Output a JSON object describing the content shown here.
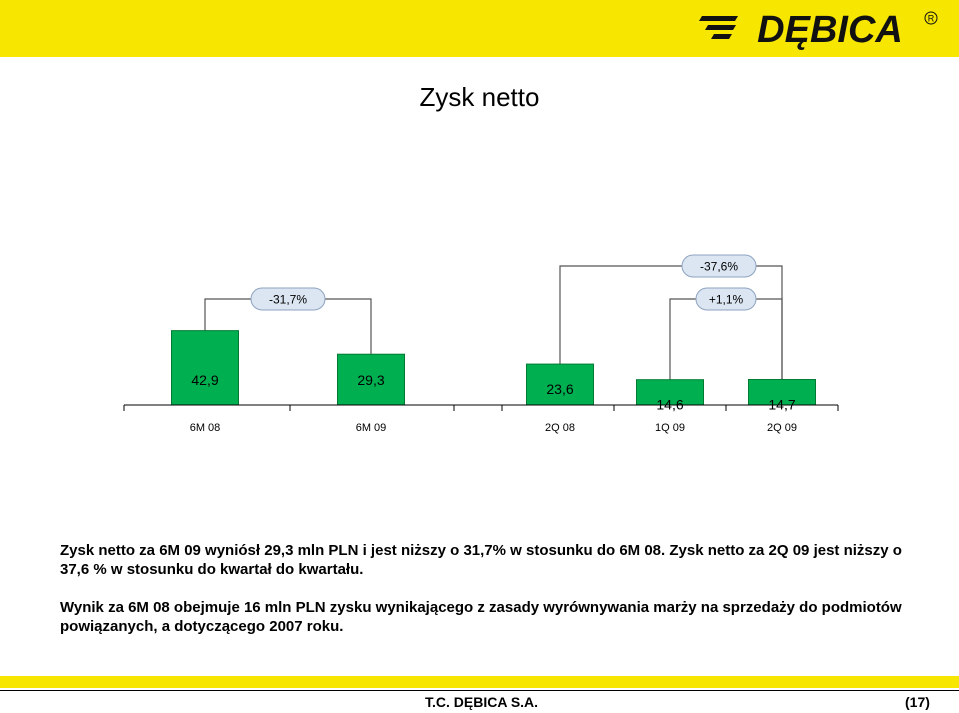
{
  "page": {
    "title": "Zysk netto",
    "paragraph1": "Zysk netto za 6M 09 wyniósł 29,3 mln PLN i jest niższy o 31,7% w stosunku do 6M 08. Zysk netto za 2Q 09 jest niższy o 37,6 % w stosunku do kwartał do kwartału.",
    "paragraph2": "Wynik za 6M 08 obejmuje 16 mln PLN zysku wynikającego z zasady wyrównywania marży na sprzedaży do podmiotów powiązanych, a dotyczącego 2007 roku.",
    "footer_company": "T.C. DĘBICA S.A.",
    "footer_page": "(17)",
    "logo_text": "DĘBICA",
    "logo_registered": "R"
  },
  "colors": {
    "brand_yellow": "#f7e600",
    "bar_green": "#00b050",
    "bar_green_dark": "#007a33",
    "callout_fill": "#dce6f2",
    "callout_border": "#8ea3c0"
  },
  "chart_data": {
    "type": "bar",
    "categories": [
      "6M 08",
      "6M 09",
      "2Q 08",
      "1Q 09",
      "2Q 09"
    ],
    "values": [
      42.9,
      29.3,
      23.6,
      14.6,
      14.7
    ],
    "value_labels": [
      "42,9",
      "29,3",
      "23,6",
      "14,6",
      "14,7"
    ],
    "title": "",
    "xlabel": "",
    "ylabel": "",
    "ylim": [
      0,
      45
    ],
    "grid": false,
    "comparisons": [
      {
        "from": "6M 08",
        "to": "6M 09",
        "label": "-31,7%"
      },
      {
        "from": "2Q 08",
        "to": "2Q 09",
        "label": "-37,6%"
      },
      {
        "from": "1Q 09",
        "to": "2Q 09",
        "label": "+1,1%"
      }
    ]
  }
}
